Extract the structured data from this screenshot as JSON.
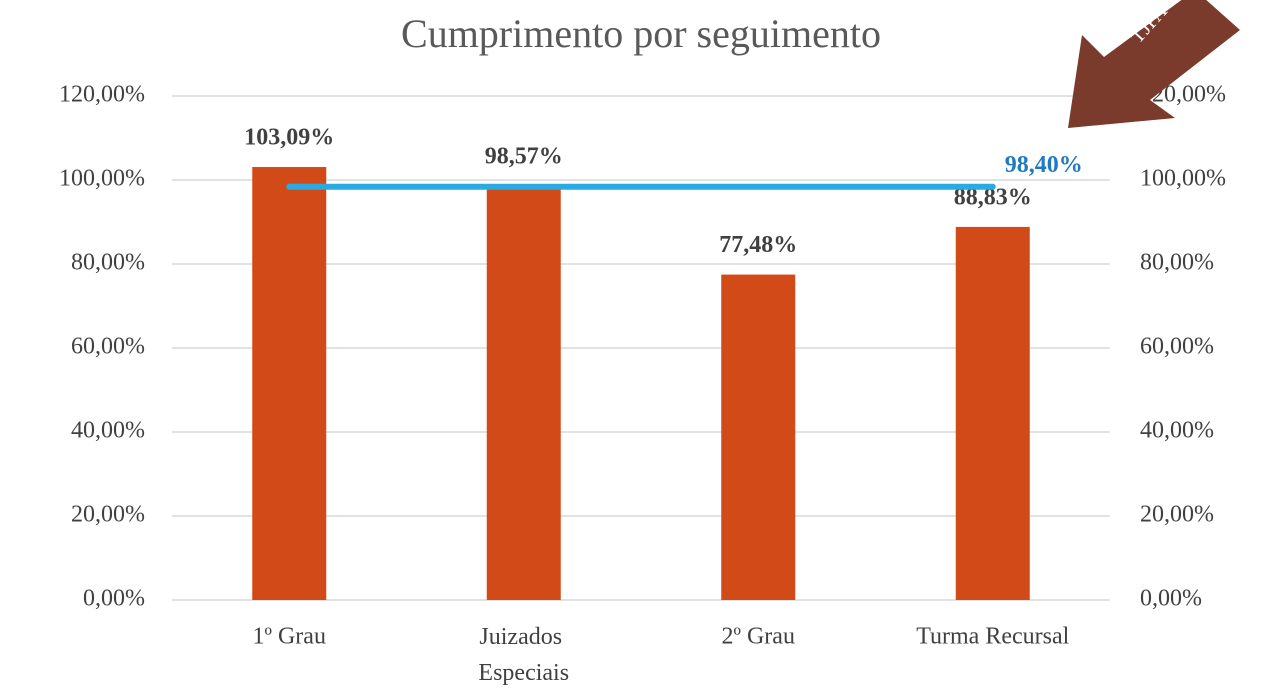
{
  "chart_data": {
    "type": "bar",
    "title": "Cumprimento por seguimento",
    "categories": [
      "1º Grau",
      "Juizados Especiais",
      "2º Grau",
      "Turma Recursal"
    ],
    "series": [
      {
        "type": "bar",
        "color": "#d24a17",
        "values": [
          103.09,
          98.57,
          77.48,
          88.83
        ],
        "value_labels": [
          "103,09%",
          "98,57%",
          "77,48%",
          "88,83%"
        ],
        "label_color": "#404040"
      },
      {
        "type": "line",
        "axis": "y2",
        "color": "#29abe2",
        "values": [
          98.4,
          98.4,
          98.4,
          98.4
        ],
        "value_labels": [
          null,
          null,
          null,
          "98,40%"
        ],
        "label_color": "#1f7ac2"
      }
    ],
    "ylim": [
      0,
      120
    ],
    "yticks": [
      {
        "value": 0,
        "label": "0,00%"
      },
      {
        "value": 20,
        "label": "20,00%"
      },
      {
        "value": 40,
        "label": "40,00%"
      },
      {
        "value": 60,
        "label": "60,00%"
      },
      {
        "value": 80,
        "label": "80,00%"
      },
      {
        "value": 100,
        "label": "100,00%"
      },
      {
        "value": 120,
        "label": "120,00%"
      }
    ],
    "y2lim": [
      0,
      120
    ],
    "y2ticks": [
      {
        "value": 0,
        "label": "0,00%"
      },
      {
        "value": 20,
        "label": "20,00%"
      },
      {
        "value": 40,
        "label": "40,00%"
      },
      {
        "value": 60,
        "label": "60,00%"
      },
      {
        "value": 80,
        "label": "80,00%"
      },
      {
        "value": 100,
        "label": "100,00%"
      },
      {
        "value": 120,
        "label": "120,00%"
      }
    ],
    "grid": true,
    "annotation": "TJPA"
  }
}
